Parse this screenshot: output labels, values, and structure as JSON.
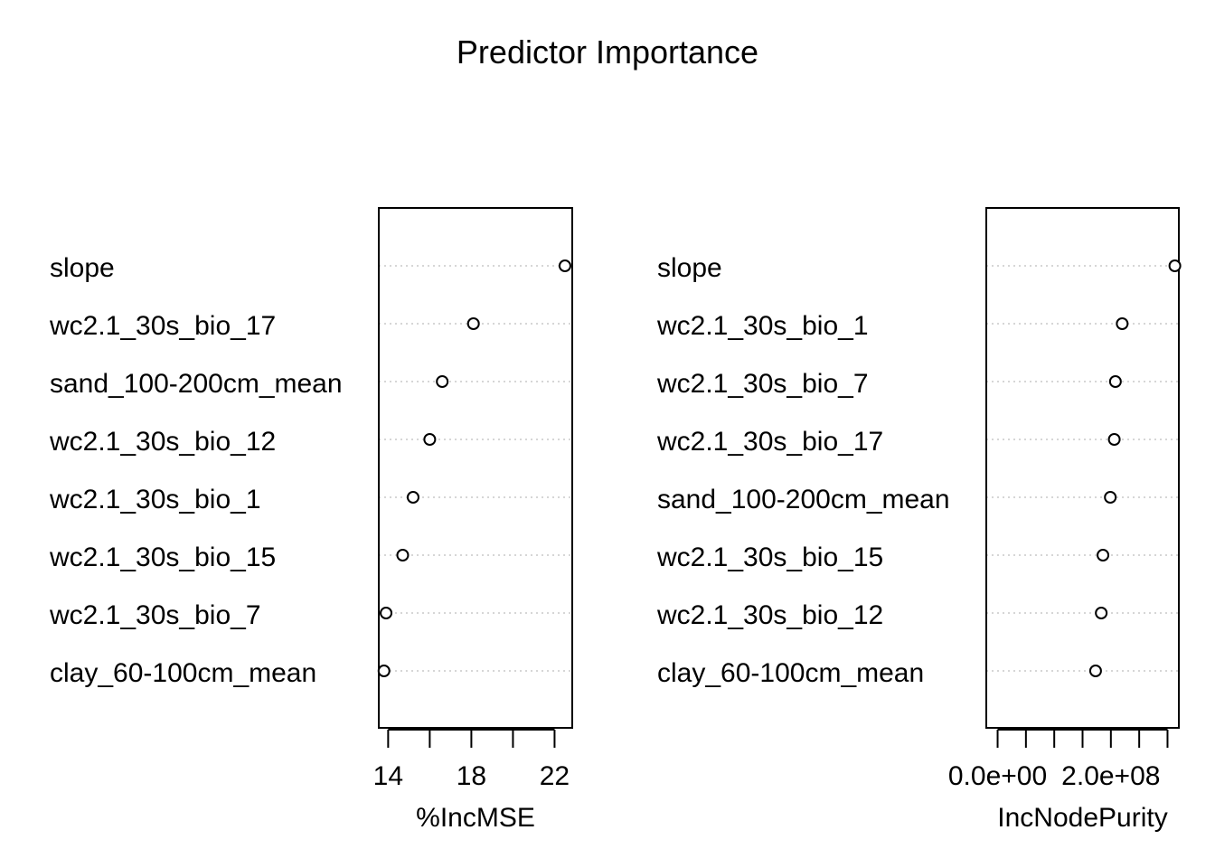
{
  "figure": {
    "title": "Predictor Importance"
  },
  "chart_data": [
    {
      "type": "scatter",
      "style": "dotchart",
      "categories": [
        "slope",
        "wc2.1_30s_bio_17",
        "sand_100-200cm_mean",
        "wc2.1_30s_bio_12",
        "wc2.1_30s_bio_1",
        "wc2.1_30s_bio_15",
        "wc2.1_30s_bio_7",
        "clay_60-100cm_mean"
      ],
      "values": [
        22.5,
        18.1,
        16.6,
        16.0,
        15.2,
        14.7,
        13.9,
        13.8
      ],
      "xlabel": "%IncMSE",
      "xlim": [
        13.55,
        22.85
      ],
      "xticks": [
        14,
        16,
        18,
        20,
        22
      ],
      "xtick_labels": [
        "14",
        "",
        "18",
        "",
        "22"
      ],
      "grid": "dotted horizontal",
      "legend": "none"
    },
    {
      "type": "scatter",
      "style": "dotchart",
      "categories": [
        "slope",
        "wc2.1_30s_bio_1",
        "wc2.1_30s_bio_7",
        "wc2.1_30s_bio_17",
        "sand_100-200cm_mean",
        "wc2.1_30s_bio_15",
        "wc2.1_30s_bio_12",
        "clay_60-100cm_mean"
      ],
      "values": [
        313000000,
        220000000,
        208000000,
        206000000,
        199000000,
        186000000,
        183000000,
        173000000
      ],
      "xlabel": "IncNodePurity",
      "xlim": [
        -20000000,
        320000000
      ],
      "xticks": [
        0,
        50000000,
        100000000,
        150000000,
        200000000,
        250000000,
        300000000
      ],
      "xtick_labels": [
        "0.0e+00",
        "",
        "",
        "",
        "2.0e+08",
        "",
        ""
      ],
      "grid": "dotted horizontal",
      "legend": "none"
    }
  ]
}
